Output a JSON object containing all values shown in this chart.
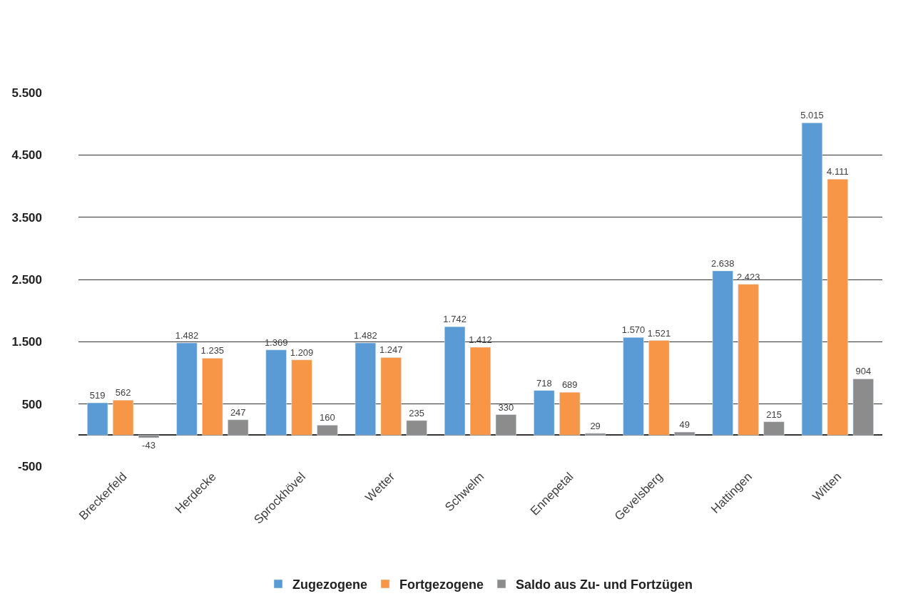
{
  "chart_data": {
    "type": "bar",
    "categories": [
      "Breckerfeld",
      "Herdecke",
      "Sprockhövel",
      "Wetter",
      "Schwelm",
      "Ennepetal",
      "Gevelsberg",
      "Hattingen",
      "Witten"
    ],
    "series": [
      {
        "name": "Zugezogene",
        "color": "#5b9bd5",
        "values": [
          519,
          1482,
          1369,
          1482,
          1742,
          718,
          1570,
          2638,
          5015
        ],
        "value_labels": [
          "519",
          "1.482",
          "1.369",
          "1.482",
          "1.742",
          "718",
          "1.570",
          "2.638",
          "5.015"
        ]
      },
      {
        "name": "Fortgezogene",
        "color": "#f79646",
        "values": [
          562,
          1235,
          1209,
          1247,
          1412,
          689,
          1521,
          2423,
          4111
        ],
        "value_labels": [
          "562",
          "1.235",
          "1.209",
          "1.247",
          "1.412",
          "689",
          "1.521",
          "2.423",
          "4.111"
        ]
      },
      {
        "name": "Saldo aus Zu- und Fortzügen",
        "color": "#8c8c8c",
        "values": [
          -43,
          247,
          160,
          235,
          330,
          29,
          49,
          215,
          904
        ],
        "value_labels": [
          "-43",
          "247",
          "160",
          "235",
          "330",
          "29",
          "49",
          "215",
          "904"
        ]
      }
    ],
    "ylim": [
      -500,
      5500
    ],
    "yticks": [
      {
        "value": -500,
        "label": "-500"
      },
      {
        "value": 500,
        "label": "500"
      },
      {
        "value": 1500,
        "label": "1.500"
      },
      {
        "value": 2500,
        "label": "2.500"
      },
      {
        "value": 3500,
        "label": "3.500"
      },
      {
        "value": 4500,
        "label": "4.500"
      },
      {
        "value": 5500,
        "label": "5.500"
      }
    ],
    "grid": "y",
    "legend": "bottom"
  }
}
